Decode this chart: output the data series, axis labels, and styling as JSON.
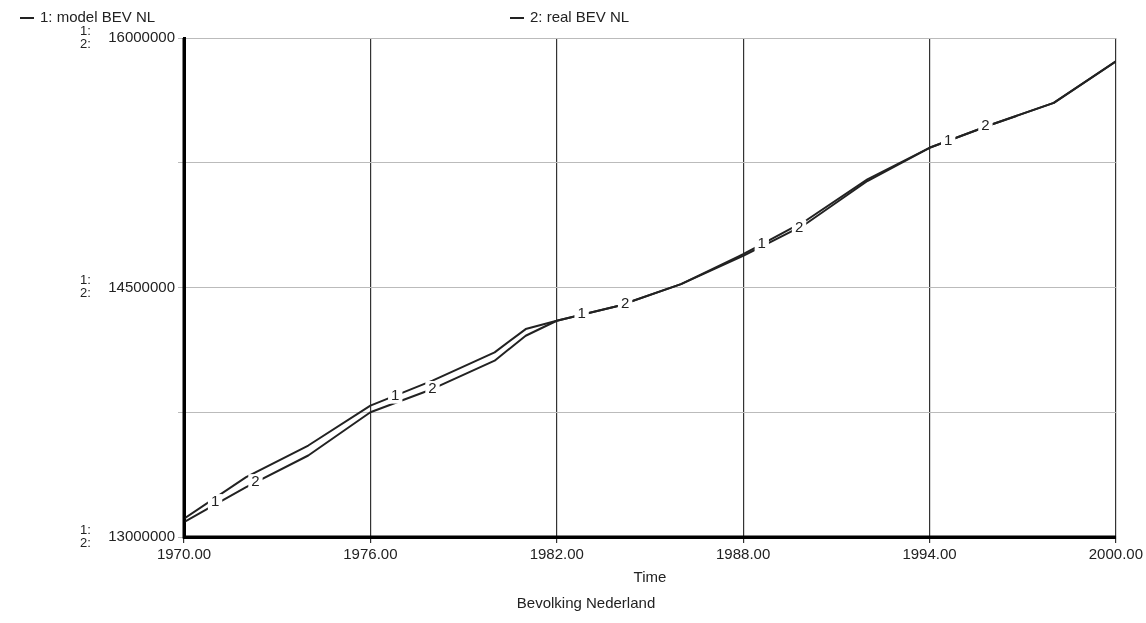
{
  "chart_data": {
    "type": "line",
    "title": "Bevolking Nederland",
    "xlabel": "Time",
    "x": [
      1970,
      1972,
      1974,
      1976,
      1978,
      1980,
      1981,
      1982,
      1984,
      1986,
      1988,
      1990,
      1992,
      1994,
      1996,
      1998,
      2000
    ],
    "series": [
      {
        "name": "1: model BEV NL",
        "color": "#222222",
        "values": [
          13110000,
          13360000,
          13550000,
          13790000,
          13940000,
          14110000,
          14250000,
          14300000,
          14390000,
          14520000,
          14700000,
          14900000,
          15150000,
          15340000,
          15480000,
          15610000,
          15860000
        ]
      },
      {
        "name": "2: real BEV NL",
        "color": "#222222",
        "values": [
          13090000,
          13300000,
          13490000,
          13750000,
          13890000,
          14060000,
          14210000,
          14300000,
          14390000,
          14520000,
          14690000,
          14880000,
          15140000,
          15340000,
          15480000,
          15610000,
          15860000
        ]
      }
    ],
    "xlim": [
      1970,
      2000
    ],
    "xticks": [
      {
        "value": 1970,
        "label": "1970.00"
      },
      {
        "value": 1976,
        "label": "1976.00"
      },
      {
        "value": 1982,
        "label": "1982.00"
      },
      {
        "value": 1988,
        "label": "1988.00"
      },
      {
        "value": 1994,
        "label": "1994.00"
      },
      {
        "value": 2000,
        "label": "2000.00"
      }
    ],
    "ylim": [
      13000000,
      16000000
    ],
    "yticks": [
      13000000,
      {
        "value": 13750000,
        "label": null
      },
      14500000,
      {
        "value": 15250000,
        "label": null
      },
      16000000
    ],
    "grid": true,
    "legend": "top",
    "marker": "none",
    "line_style": "solid",
    "annotations": [
      "1:",
      "2:",
      "1:",
      "2:",
      "1:",
      "2:",
      {
        "text": "1",
        "x": 1971,
        "y": 13210000
      },
      {
        "text": "2",
        "x": 1972.3,
        "y": 13330000
      },
      {
        "text": "1",
        "x": 1976.8,
        "y": 13850000
      },
      {
        "text": "2",
        "x": 1978,
        "y": 13890000
      },
      {
        "text": "1",
        "x": 1982.8,
        "y": 14340000
      },
      {
        "text": "2",
        "x": 1984.2,
        "y": 14400000
      },
      {
        "text": "1",
        "x": 1988.6,
        "y": 14760000
      },
      {
        "text": "2",
        "x": 1989.8,
        "y": 14860000
      },
      {
        "text": "1",
        "x": 1994.6,
        "y": 15380000
      },
      {
        "text": "2",
        "x": 1995.8,
        "y": 15470000
      }
    ]
  }
}
